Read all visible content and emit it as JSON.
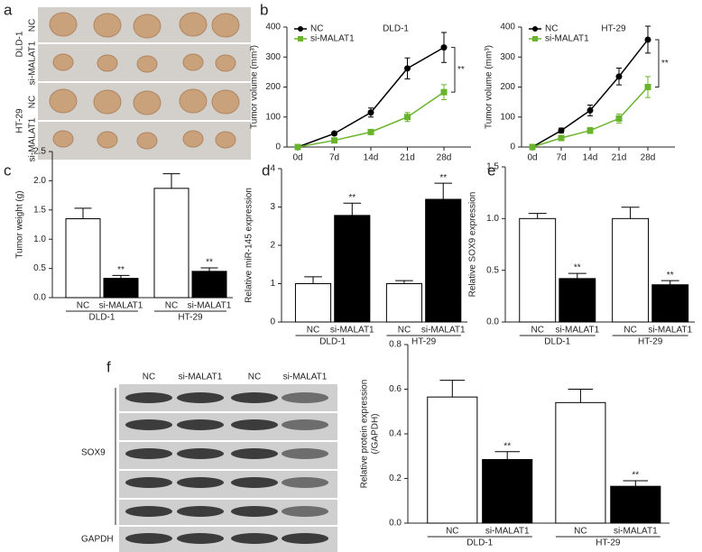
{
  "panels": [
    "a",
    "b",
    "c",
    "d",
    "e",
    "f"
  ],
  "tumor_photo": {
    "groups": [
      {
        "cell": "DLD-1",
        "rows": [
          "NC",
          "si-MALAT1"
        ]
      },
      {
        "cell": "HT-29",
        "rows": [
          "NC",
          "si-MALAT1"
        ]
      }
    ]
  },
  "western_blot": {
    "lanes": [
      "NC",
      "si-MALAT1",
      "NC",
      "si-MALAT1"
    ],
    "labels": [
      "SOX9",
      "GAPDH"
    ]
  },
  "chart_data": [
    {
      "type": "line",
      "title": "DLD-1",
      "ylabel": "Tumor volume (mm³)",
      "categories": [
        "0d",
        "7d",
        "14d",
        "21d",
        "28d"
      ],
      "ylim": [
        0,
        400
      ],
      "yticks": [
        0,
        100,
        200,
        300,
        400
      ],
      "annotation": "**",
      "series": [
        {
          "name": "NC",
          "color": "#000000",
          "marker": "circle",
          "values": [
            0,
            45,
            115,
            262,
            332
          ],
          "errors": [
            0,
            5,
            15,
            35,
            50
          ]
        },
        {
          "name": "si-MALAT1",
          "color": "#6ab42d",
          "marker": "square",
          "values": [
            0,
            22,
            50,
            100,
            183
          ],
          "errors": [
            0,
            3,
            8,
            15,
            25
          ]
        }
      ]
    },
    {
      "type": "line",
      "title": "HT-29",
      "ylabel": "Tumor volume (mm³)",
      "categories": [
        "0d",
        "7d",
        "14d",
        "21d",
        "28d"
      ],
      "ylim": [
        0,
        400
      ],
      "yticks": [
        0,
        100,
        200,
        300,
        400
      ],
      "annotation": "**",
      "series": [
        {
          "name": "NC",
          "color": "#000000",
          "marker": "circle",
          "values": [
            0,
            55,
            122,
            235,
            358
          ],
          "errors": [
            0,
            8,
            18,
            28,
            45
          ]
        },
        {
          "name": "si-MALAT1",
          "color": "#6ab42d",
          "marker": "square",
          "values": [
            0,
            30,
            55,
            95,
            200
          ],
          "errors": [
            0,
            5,
            10,
            15,
            35
          ]
        }
      ]
    },
    {
      "type": "bar",
      "ylabel": "Tumor weight (g)",
      "categories": [
        "NC",
        "si-MALAT1",
        "NC",
        "si-MALAT1"
      ],
      "groups": [
        "DLD-1",
        "HT-29"
      ],
      "values": [
        1.35,
        0.33,
        1.87,
        0.45
      ],
      "errors": [
        0.18,
        0.05,
        0.25,
        0.06
      ],
      "significance": [
        null,
        "**",
        null,
        "**"
      ],
      "colors": [
        "#ffffff",
        "#000000",
        "#ffffff",
        "#000000"
      ],
      "ylim": [
        0,
        2.5
      ],
      "yticks": [
        {
          "value": 0,
          "label": "0.0"
        },
        0.5,
        {
          "value": 1,
          "label": "1.0"
        },
        1.5,
        {
          "value": 2,
          "label": "2.0"
        },
        2.5
      ]
    },
    {
      "type": "bar",
      "ylabel": "Relative miR-145 expression",
      "categories": [
        "NC",
        "si-MALAT1",
        "NC",
        "si-MALAT1"
      ],
      "groups": [
        "DLD-1",
        "HT-29"
      ],
      "values": [
        1.0,
        2.78,
        1.0,
        3.2
      ],
      "errors": [
        0.18,
        0.32,
        0.08,
        0.42
      ],
      "significance": [
        null,
        "**",
        null,
        "**"
      ],
      "colors": [
        "#ffffff",
        "#000000",
        "#ffffff",
        "#000000"
      ],
      "ylim": [
        0,
        4
      ],
      "yticks": [
        0,
        1,
        2,
        3,
        4
      ]
    },
    {
      "type": "bar",
      "ylabel": "Relative SOX9 expression",
      "categories": [
        "NC",
        "si-MALAT1",
        "NC",
        "si-MALAT1"
      ],
      "groups": [
        "DLD-1",
        "HT-29"
      ],
      "values": [
        1.0,
        0.42,
        1.0,
        0.36
      ],
      "errors": [
        0.05,
        0.05,
        0.11,
        0.04
      ],
      "significance": [
        null,
        "**",
        null,
        "**"
      ],
      "colors": [
        "#ffffff",
        "#000000",
        "#ffffff",
        "#000000"
      ],
      "ylim": [
        0,
        1.5
      ],
      "yticks": [
        {
          "value": 0,
          "label": "0.0"
        },
        0.5,
        {
          "value": 1,
          "label": "1.0"
        },
        1.5
      ]
    },
    {
      "type": "bar",
      "ylabel": [
        "Relative protein expression",
        "(/GAPDH)"
      ],
      "categories": [
        "NC",
        "si-MALAT1",
        "NC",
        "si-MALAT1"
      ],
      "groups": [
        "DLD-1",
        "HT-29"
      ],
      "values": [
        0.565,
        0.285,
        0.54,
        0.165
      ],
      "errors": [
        0.075,
        0.035,
        0.06,
        0.025
      ],
      "significance": [
        null,
        "**",
        null,
        "**"
      ],
      "colors": [
        "#ffffff",
        "#000000",
        "#ffffff",
        "#000000"
      ],
      "ylim": [
        0,
        0.8
      ],
      "yticks": [
        {
          "value": 0,
          "label": "0.0"
        },
        0.2,
        0.4,
        0.6,
        0.8
      ]
    }
  ]
}
